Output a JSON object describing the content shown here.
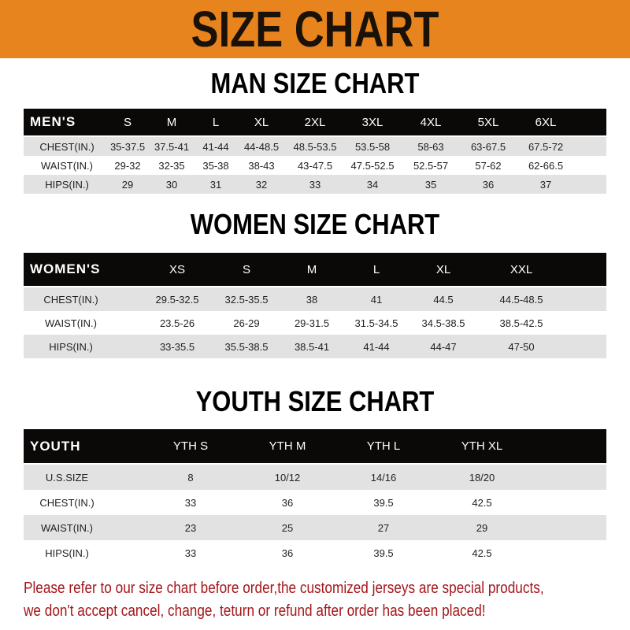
{
  "banner": {
    "title": "SIZE CHART",
    "color": "#E8841E"
  },
  "tables": [
    {
      "title": "MAN SIZE CHART",
      "header": [
        "MEN'S",
        "S",
        "M",
        "L",
        "XL",
        "2XL",
        "3XL",
        "4XL",
        "5XL",
        "6XL"
      ],
      "rows": [
        [
          "CHEST(IN.)",
          "35-37.5",
          "37.5-41",
          "41-44",
          "44-48.5",
          "48.5-53.5",
          "53.5-58",
          "58-63",
          "63-67.5",
          "67.5-72"
        ],
        [
          "WAIST(IN.)",
          "29-32",
          "32-35",
          "35-38",
          "38-43",
          "43-47.5",
          "47.5-52.5",
          "52.5-57",
          "57-62",
          "62-66.5"
        ],
        [
          "HIPS(IN.)",
          "29",
          "30",
          "31",
          "32",
          "33",
          "34",
          "35",
          "36",
          "37"
        ]
      ]
    },
    {
      "title": "WOMEN SIZE CHART",
      "header": [
        "WOMEN'S",
        "XS",
        "S",
        "M",
        "L",
        "XL",
        "XXL"
      ],
      "rows": [
        [
          "CHEST(IN.)",
          "29.5-32.5",
          "32.5-35.5",
          "38",
          "41",
          "44.5",
          "44.5-48.5"
        ],
        [
          "WAIST(IN.)",
          "23.5-26",
          "26-29",
          "29-31.5",
          "31.5-34.5",
          "34.5-38.5",
          "38.5-42.5"
        ],
        [
          "HIPS(IN.)",
          "33-35.5",
          "35.5-38.5",
          "38.5-41",
          "41-44",
          "44-47",
          "47-50"
        ]
      ]
    },
    {
      "title": "YOUTH SIZE CHART",
      "header": [
        "YOUTH",
        "YTH S",
        "YTH M",
        "YTH L",
        "YTH XL"
      ],
      "rows": [
        [
          "U.S.SIZE",
          "8",
          "10/12",
          "14/16",
          "18/20"
        ],
        [
          "CHEST(IN.)",
          "33",
          "36",
          "39.5",
          "42.5"
        ],
        [
          "WAIST(IN.)",
          "23",
          "25",
          "27",
          "29"
        ],
        [
          "HIPS(IN.)",
          "33",
          "36",
          "39.5",
          "42.5"
        ]
      ]
    }
  ],
  "footer": {
    "line1": "Please refer to our size chart before order,the customized jerseys are special products,",
    "line2": "we don't accept cancel, change, teturn or refund after order has been placed!",
    "color": "#A4161A"
  }
}
